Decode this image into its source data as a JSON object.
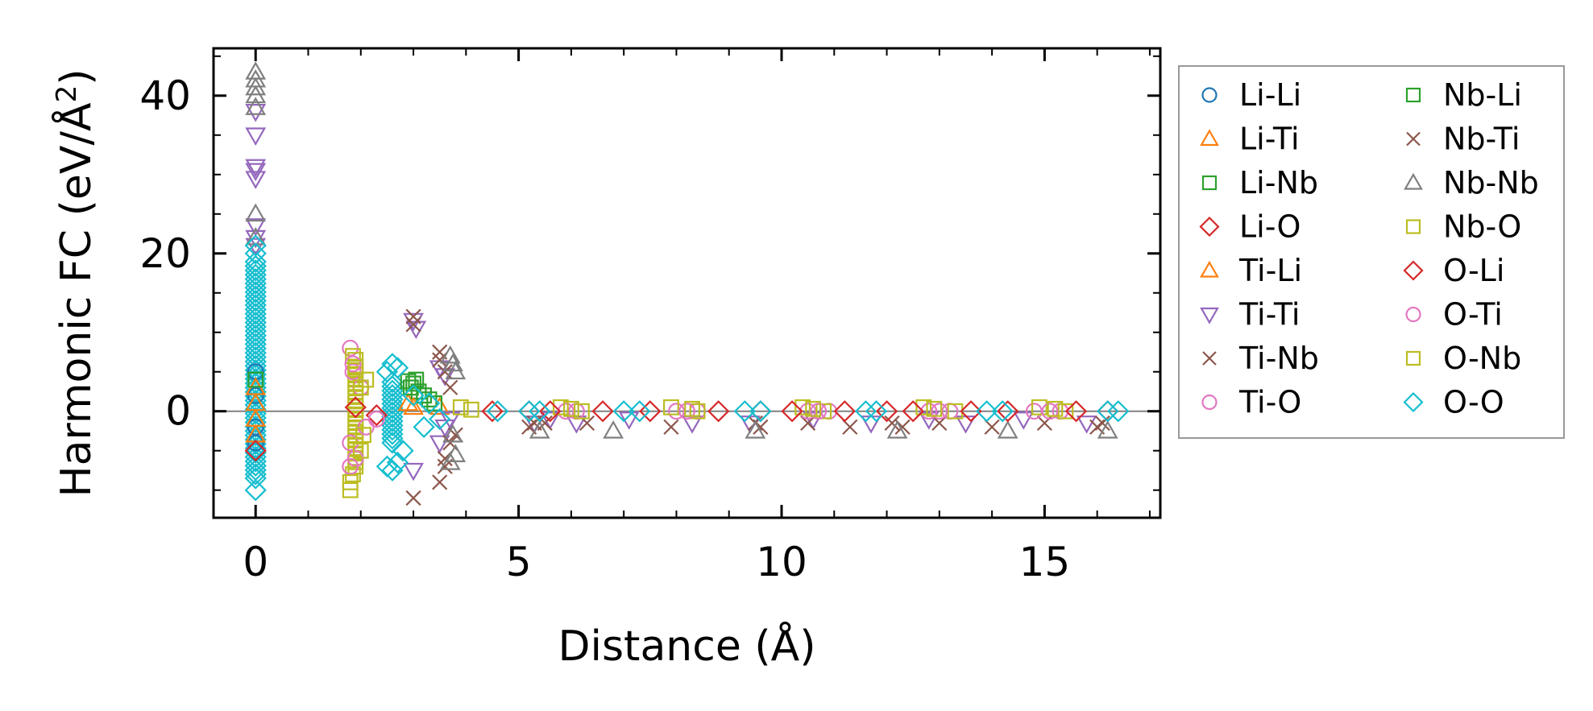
{
  "chart_data": {
    "type": "scatter",
    "xlabel": "Distance (Å)",
    "ylabel_main": "Harmonic FC (eV/Å",
    "ylabel_sup": "2",
    "ylabel_close": ")",
    "xlim": [
      -0.8,
      17.2
    ],
    "ylim": [
      -13.5,
      46
    ],
    "x_ticks": [
      0,
      5,
      10,
      15
    ],
    "x_tick_labels": [
      "0",
      "5",
      "10",
      "15"
    ],
    "y_ticks": [
      0,
      20,
      40
    ],
    "y_tick_labels": [
      "0",
      "20",
      "40"
    ],
    "x_minor_step": 1,
    "y_minor_step": 5,
    "zero_line": true,
    "legend_position": "outside-right",
    "legend_columns": 2,
    "series": [
      {
        "name": "Li-Li",
        "marker": "circle",
        "color": "#1f77b4",
        "points": [
          [
            0,
            2
          ],
          [
            0,
            -2
          ],
          [
            0,
            5
          ],
          [
            0,
            -4
          ]
        ]
      },
      {
        "name": "Li-Ti",
        "marker": "triangle-up",
        "color": "#ff7f0e",
        "points": [
          [
            0,
            3
          ],
          [
            0,
            -3
          ],
          [
            2.9,
            1
          ],
          [
            3.5,
            0.5
          ]
        ]
      },
      {
        "name": "Li-Nb",
        "marker": "square",
        "color": "#2ca02c",
        "points": [
          [
            0,
            4
          ],
          [
            3.0,
            3.5
          ],
          [
            3.1,
            2.5
          ],
          [
            3.3,
            1.5
          ],
          [
            2.9,
            3.8
          ]
        ]
      },
      {
        "name": "Li-O",
        "marker": "diamond",
        "color": "#d62728",
        "points": [
          [
            0,
            -5
          ],
          [
            1.9,
            0.5
          ],
          [
            2.3,
            -0.5
          ]
        ]
      },
      {
        "name": "Ti-Li",
        "marker": "triangle-up",
        "color": "#ff7f0e",
        "points": [
          [
            0,
            1
          ],
          [
            0,
            -1
          ],
          [
            3.0,
            0.5
          ]
        ]
      },
      {
        "name": "Ti-Ti",
        "marker": "triangle-down",
        "color": "#9467bd",
        "points": [
          [
            0,
            35
          ],
          [
            0,
            31
          ],
          [
            0,
            30.5
          ],
          [
            0,
            29.5
          ],
          [
            0,
            23.5
          ],
          [
            0,
            22
          ],
          [
            0,
            21
          ],
          [
            0,
            38
          ],
          [
            3.0,
            11.5
          ],
          [
            3.05,
            10.5
          ],
          [
            3.0,
            -7.5
          ],
          [
            3.5,
            5.5
          ],
          [
            3.6,
            4.5
          ],
          [
            3.5,
            -4
          ],
          [
            3.6,
            -2
          ],
          [
            3.7,
            -1
          ],
          [
            5.3,
            -1.5
          ],
          [
            5.6,
            -1
          ],
          [
            6.1,
            -1.5
          ],
          [
            7.1,
            -1
          ],
          [
            8.3,
            -1.5
          ],
          [
            9.4,
            -1.5
          ],
          [
            10.6,
            -1
          ],
          [
            11.7,
            -1.5
          ],
          [
            12.8,
            -1
          ],
          [
            13.5,
            -1.5
          ],
          [
            14.6,
            -1
          ],
          [
            15.8,
            -1.5
          ]
        ]
      },
      {
        "name": "Ti-Nb",
        "marker": "x",
        "color": "#8c564b",
        "points": [
          [
            3.0,
            12
          ],
          [
            3.0,
            -11
          ],
          [
            3.5,
            7.5
          ],
          [
            3.6,
            5
          ],
          [
            3.7,
            3
          ],
          [
            3.5,
            -9
          ],
          [
            3.6,
            -7
          ],
          [
            3.7,
            -4
          ],
          [
            3.8,
            -3
          ],
          [
            5.2,
            -2
          ],
          [
            5.5,
            -1.5
          ],
          [
            6.3,
            -1.5
          ],
          [
            7.9,
            -2
          ],
          [
            9.6,
            -2
          ],
          [
            10.5,
            -1.5
          ],
          [
            11.3,
            -2
          ],
          [
            12.3,
            -2
          ],
          [
            13.0,
            -1.5
          ],
          [
            14.0,
            -2
          ],
          [
            15.0,
            -1.5
          ],
          [
            16.0,
            -2
          ]
        ]
      },
      {
        "name": "Ti-O",
        "marker": "circle",
        "color": "#e377c2",
        "points": [
          [
            1.8,
            8
          ],
          [
            1.85,
            5
          ],
          [
            1.9,
            -6
          ],
          [
            1.8,
            -4
          ],
          [
            2.0,
            3
          ],
          [
            2.1,
            -2
          ],
          [
            2.3,
            -1
          ],
          [
            5.9,
            0
          ],
          [
            6.1,
            0
          ],
          [
            8.0,
            0
          ],
          [
            8.4,
            0
          ],
          [
            10.5,
            0
          ],
          [
            10.9,
            0
          ],
          [
            12.8,
            0
          ],
          [
            13.2,
            0
          ],
          [
            14.8,
            0
          ],
          [
            15.3,
            0
          ]
        ]
      },
      {
        "name": "Nb-Li",
        "marker": "square",
        "color": "#2ca02c",
        "points": [
          [
            2.95,
            3
          ],
          [
            3.05,
            4
          ],
          [
            3.2,
            2
          ],
          [
            3.4,
            1
          ]
        ]
      },
      {
        "name": "Nb-Ti",
        "marker": "x",
        "color": "#8c564b",
        "points": [
          [
            3.0,
            11
          ],
          [
            3.5,
            6.5
          ],
          [
            3.6,
            -6
          ],
          [
            5.3,
            -1.5
          ],
          [
            9.5,
            -1.5
          ],
          [
            12.1,
            -1.5
          ],
          [
            16.1,
            -1.5
          ]
        ]
      },
      {
        "name": "Nb-Nb",
        "marker": "triangle-up",
        "color": "#7f7f7f",
        "points": [
          [
            0,
            43
          ],
          [
            0,
            42
          ],
          [
            0,
            41
          ],
          [
            0,
            40
          ],
          [
            0,
            38.5
          ],
          [
            0,
            25
          ],
          [
            0,
            22
          ],
          [
            3.7,
            7
          ],
          [
            3.75,
            6
          ],
          [
            3.8,
            5
          ],
          [
            3.7,
            -6.5
          ],
          [
            3.8,
            -5.5
          ],
          [
            3.75,
            -3
          ],
          [
            5.4,
            -2.5
          ],
          [
            6.8,
            -2.5
          ],
          [
            9.5,
            -2.5
          ],
          [
            12.2,
            -2.5
          ],
          [
            14.3,
            -2.5
          ],
          [
            16.2,
            -2.5
          ]
        ]
      },
      {
        "name": "Nb-O",
        "marker": "square",
        "color": "#bcbd22",
        "points": [
          [
            1.8,
            -10
          ],
          [
            1.85,
            -8
          ],
          [
            1.9,
            6.5
          ],
          [
            1.85,
            7
          ],
          [
            2.0,
            3
          ],
          [
            2.05,
            -3
          ],
          [
            3.9,
            0.5
          ],
          [
            4.1,
            0.2
          ],
          [
            5.8,
            0.5
          ],
          [
            6.2,
            0
          ],
          [
            7.9,
            0.5
          ],
          [
            8.4,
            0
          ],
          [
            10.4,
            0.5
          ],
          [
            10.8,
            0
          ],
          [
            12.7,
            0.5
          ],
          [
            13.3,
            0
          ],
          [
            14.9,
            0.5
          ],
          [
            15.4,
            0
          ]
        ]
      },
      {
        "name": "O-Li",
        "marker": "diamond",
        "color": "#d62728",
        "points": [
          [
            4.5,
            0
          ],
          [
            5.2,
            0
          ],
          [
            5.6,
            0
          ],
          [
            6.6,
            0
          ],
          [
            7.5,
            0
          ],
          [
            8.8,
            0
          ],
          [
            9.6,
            0
          ],
          [
            10.2,
            0
          ],
          [
            11.2,
            0
          ],
          [
            12.0,
            0
          ],
          [
            12.5,
            0
          ],
          [
            13.6,
            0
          ],
          [
            14.3,
            0
          ],
          [
            15.6,
            0
          ],
          [
            16.2,
            0
          ]
        ]
      },
      {
        "name": "O-Ti",
        "marker": "circle",
        "color": "#e377c2",
        "points": [
          [
            1.8,
            -7
          ],
          [
            1.85,
            6
          ],
          [
            8.2,
            0
          ],
          [
            10.7,
            0
          ],
          [
            13.0,
            0
          ],
          [
            15.1,
            0
          ]
        ]
      },
      {
        "name": "O-Nb",
        "marker": "square",
        "color": "#bcbd22",
        "points": [
          [
            1.8,
            -9
          ],
          [
            1.9,
            5.5
          ],
          [
            2.0,
            -5
          ],
          [
            2.1,
            4
          ],
          [
            6.0,
            0.3
          ],
          [
            8.3,
            0.3
          ],
          [
            10.6,
            0.3
          ],
          [
            12.9,
            0.3
          ],
          [
            15.2,
            0.3
          ]
        ]
      },
      {
        "name": "O-O",
        "marker": "diamond",
        "color": "#17becf",
        "points": [
          [
            0,
            21
          ],
          [
            0,
            20
          ],
          [
            0,
            -10
          ],
          [
            0,
            -8.5
          ],
          [
            2.5,
            5
          ],
          [
            2.6,
            6
          ],
          [
            2.7,
            5.5
          ],
          [
            2.5,
            -7
          ],
          [
            2.6,
            -7.5
          ],
          [
            2.7,
            -6.5
          ],
          [
            2.8,
            -5
          ],
          [
            3.0,
            2
          ],
          [
            3.2,
            -2
          ],
          [
            3.3,
            1
          ],
          [
            3.5,
            -1
          ],
          [
            4.6,
            0
          ],
          [
            5.2,
            0
          ],
          [
            5.4,
            0
          ],
          [
            7.0,
            0
          ],
          [
            7.3,
            0
          ],
          [
            9.3,
            0
          ],
          [
            9.6,
            0
          ],
          [
            11.6,
            0
          ],
          [
            11.8,
            0
          ],
          [
            13.9,
            0
          ],
          [
            14.2,
            0
          ],
          [
            16.2,
            0
          ],
          [
            16.4,
            0
          ]
        ]
      }
    ],
    "dense_bands": [
      {
        "series": "O-O",
        "x": 0,
        "y_min": -8,
        "y_max": 19,
        "color": "#17becf",
        "marker": "diamond"
      },
      {
        "series": "Nb-O",
        "x": 1.9,
        "y_min": -7,
        "y_max": 6,
        "color": "#bcbd22",
        "marker": "square"
      },
      {
        "series": "O-O",
        "x": 2.6,
        "y_min": -4,
        "y_max": 4,
        "color": "#17becf",
        "marker": "diamond"
      }
    ]
  },
  "legend": {
    "left_column": [
      "Li-Li",
      "Li-Ti",
      "Li-Nb",
      "Li-O",
      "Ti-Li",
      "Ti-Ti",
      "Ti-Nb",
      "Ti-O"
    ],
    "right_column": [
      "Nb-Li",
      "Nb-Ti",
      "Nb-Nb",
      "Nb-O",
      "O-Li",
      "O-Ti",
      "O-Nb",
      "O-O"
    ]
  },
  "colors": {
    "axis": "#000000",
    "zero_line": "#808080",
    "legend_border": "#999999"
  }
}
